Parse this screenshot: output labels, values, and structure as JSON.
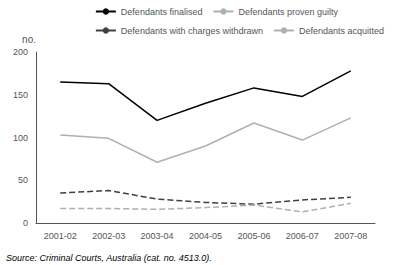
{
  "chart_data": {
    "type": "line",
    "ylabel": "no.",
    "annotations": [
      "Source: Criminal Courts, Australia (cat. no. 4513.0)."
    ],
    "categories": [
      "2001-02",
      "2002-03",
      "2003-04",
      "2004-05",
      "2005-06",
      "2006-07",
      "2007-08"
    ],
    "series": [
      {
        "name": "Defendants finalised",
        "color": "#000000",
        "line_style": "solid",
        "values": [
          165,
          163,
          120,
          140,
          158,
          148,
          178
        ]
      },
      {
        "name": "Defendants proven guilty",
        "color": "#b0b0b0",
        "line_style": "solid",
        "values": [
          103,
          99,
          71,
          90,
          117,
          97,
          123
        ]
      },
      {
        "name": "Defendants with charges withdrawn",
        "color": "#404040",
        "line_style": "dashed",
        "values": [
          35,
          38,
          28,
          24,
          22,
          27,
          30
        ]
      },
      {
        "name": "Defendants acquitted",
        "color": "#b0b0b0",
        "line_style": "dashed",
        "values": [
          17,
          17,
          16,
          18,
          21,
          13,
          23
        ]
      }
    ],
    "ylim": [
      0,
      200
    ],
    "yticks": [
      0,
      50,
      100,
      150,
      200
    ],
    "grid": false,
    "legend": "upper right"
  }
}
